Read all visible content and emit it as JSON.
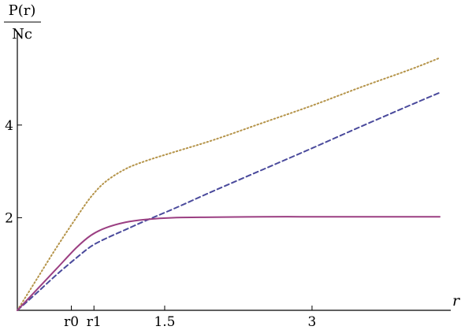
{
  "chart_data": {
    "type": "line",
    "title": "",
    "ylabel_numerator": "P(r)",
    "ylabel_denominator": "Nc",
    "xlabel": "r",
    "xlim": [
      0,
      4.3
    ],
    "ylim": [
      0,
      5.85
    ],
    "xticks": [
      {
        "value": 0.55,
        "label": "r0"
      },
      {
        "value": 0.78,
        "label": "r1"
      },
      {
        "value": 1.5,
        "label": "1.5"
      },
      {
        "value": 3,
        "label": "3"
      }
    ],
    "yticks": [
      {
        "value": 2,
        "label": "2"
      },
      {
        "value": 4,
        "label": "4"
      }
    ],
    "grid": false,
    "legend": "none",
    "series": [
      {
        "color": "#b5944a",
        "dash": "dotted",
        "x": [
          0,
          0.2,
          0.4,
          0.6,
          0.75,
          0.9,
          1.1,
          1.3,
          1.6,
          2.0,
          2.5,
          3.0,
          3.5,
          4.0,
          4.3
        ],
        "y": [
          0,
          0.68,
          1.36,
          2.0,
          2.45,
          2.78,
          3.05,
          3.22,
          3.42,
          3.68,
          4.05,
          4.42,
          4.82,
          5.2,
          5.45
        ]
      },
      {
        "color": "#4a4a9c",
        "dash": "dashed",
        "x": [
          0,
          0.2,
          0.4,
          0.6,
          0.75,
          0.9,
          1.1,
          1.3,
          1.6,
          2.0,
          2.5,
          3.0,
          3.5,
          4.0,
          4.3
        ],
        "y": [
          0,
          0.38,
          0.77,
          1.13,
          1.38,
          1.55,
          1.74,
          1.93,
          2.2,
          2.58,
          3.04,
          3.5,
          3.97,
          4.43,
          4.7
        ]
      },
      {
        "color": "#9b3f82",
        "dash": "solid",
        "x": [
          0,
          0.2,
          0.4,
          0.6,
          0.75,
          0.9,
          1.1,
          1.3,
          1.6,
          2.0,
          2.5,
          3.0,
          3.5,
          4.0,
          4.3
        ],
        "y": [
          0,
          0.45,
          0.9,
          1.35,
          1.62,
          1.78,
          1.9,
          1.96,
          2.0,
          2.01,
          2.02,
          2.02,
          2.02,
          2.02,
          2.02
        ]
      }
    ]
  }
}
